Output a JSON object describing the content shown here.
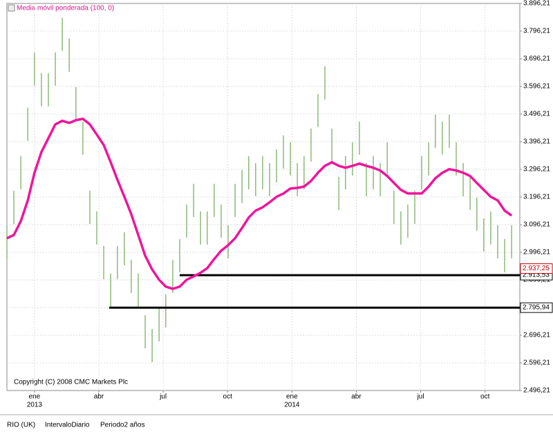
{
  "chart_data": {
    "type": "ohlc",
    "legend_label": "Media móvil ponderada (100, 0)",
    "copyright": "Copyright (C) 2008 CMC Markets Plc",
    "footer": [
      "RIO (UK)",
      "IntervaloDiario",
      "Periodo2 años"
    ],
    "bar_color": "#8cb87a",
    "grid": true,
    "xlim": [
      2012.893,
      2014.885
    ],
    "xticks": [
      {
        "value": 2013.0,
        "label": "ene"
      },
      {
        "value": 2013.25,
        "label": "abr"
      },
      {
        "value": 2013.5,
        "label": "jul"
      },
      {
        "value": 2013.75,
        "label": "oct"
      },
      {
        "value": 2014.0,
        "label": "ene"
      },
      {
        "value": 2014.25,
        "label": "abr"
      },
      {
        "value": 2014.5,
        "label": "jul"
      },
      {
        "value": 2014.75,
        "label": "oct"
      }
    ],
    "year_labels": [
      {
        "value": 2013.0,
        "label": "2013"
      },
      {
        "value": 2014.0,
        "label": "2014"
      }
    ],
    "ylim": [
      2496.21,
      3896.21
    ],
    "yticks": [
      {
        "value": 2496.21,
        "label": "2.496,21"
      },
      {
        "value": 2596.21,
        "label": "2.596,21"
      },
      {
        "value": 2696.21,
        "label": "2.696,21"
      },
      {
        "value": 2796.21,
        "label": "2.796,21"
      },
      {
        "value": 2896.21,
        "label": "2.896,21"
      },
      {
        "value": 2996.21,
        "label": "2.996,21"
      },
      {
        "value": 3096.21,
        "label": "3.096,21"
      },
      {
        "value": 3196.21,
        "label": "3.196,21"
      },
      {
        "value": 3296.21,
        "label": "3.296,21"
      },
      {
        "value": 3396.21,
        "label": "3.396,21"
      },
      {
        "value": 3496.21,
        "label": "3.496,21"
      },
      {
        "value": 3596.21,
        "label": "3.596,21"
      },
      {
        "value": 3696.21,
        "label": "3.696,21"
      },
      {
        "value": 3796.21,
        "label": "3.796,21"
      },
      {
        "value": 3896.21,
        "label": "3.896,21"
      }
    ],
    "x": [
      2012.893,
      2012.92,
      2012.947,
      2012.974,
      2013.0,
      2013.027,
      2013.054,
      2013.081,
      2013.108,
      2013.135,
      2013.161,
      2013.188,
      2013.215,
      2013.242,
      2013.269,
      2013.296,
      2013.322,
      2013.349,
      2013.376,
      2013.403,
      2013.43,
      2013.457,
      2013.484,
      2013.51,
      2013.537,
      2013.564,
      2013.591,
      2013.618,
      2013.645,
      2013.671,
      2013.698,
      2013.725,
      2013.752,
      2013.779,
      2013.806,
      2013.832,
      2013.859,
      2013.886,
      2013.913,
      2013.94,
      2013.967,
      2013.994,
      2014.021,
      2014.047,
      2014.074,
      2014.101,
      2014.128,
      2014.155,
      2014.182,
      2014.208,
      2014.235,
      2014.262,
      2014.289,
      2014.316,
      2014.343,
      2014.37,
      2014.396,
      2014.423,
      2014.45,
      2014.477,
      2014.504,
      2014.531,
      2014.557,
      2014.584,
      2014.611,
      2014.638,
      2014.665,
      2014.692,
      2014.718,
      2014.745,
      2014.772,
      2014.799,
      2014.826,
      2014.853
    ],
    "high": [
      3094,
      3219,
      3344,
      3519,
      3719,
      3644,
      3644,
      3719,
      3844,
      3769,
      3594,
      3469,
      3219,
      3144,
      3019,
      2919,
      3019,
      3069,
      2969,
      2919,
      2769,
      2719,
      2794,
      2844,
      2969,
      3044,
      3169,
      3244,
      3144,
      3144,
      3244,
      3169,
      3094,
      3244,
      3294,
      3344,
      3319,
      3344,
      3319,
      3369,
      3419,
      3394,
      3319,
      3344,
      3444,
      3569,
      3669,
      3444,
      3269,
      3344,
      3394,
      3469,
      3319,
      3344,
      3319,
      3394,
      3219,
      3144,
      3169,
      3219,
      3344,
      3394,
      3494,
      3469,
      3494,
      3394,
      3319,
      3269,
      3194,
      3119,
      3144,
      3094,
      3044,
      3094
    ],
    "low": [
      2974,
      3099,
      3224,
      3399,
      3599,
      3524,
      3524,
      3599,
      3724,
      3649,
      3474,
      3349,
      3099,
      3024,
      2899,
      2799,
      2899,
      2949,
      2849,
      2799,
      2649,
      2599,
      2674,
      2724,
      2849,
      2924,
      3049,
      3124,
      3024,
      3024,
      3124,
      3049,
      2974,
      3124,
      3174,
      3224,
      3199,
      3224,
      3199,
      3249,
      3299,
      3274,
      3199,
      3224,
      3324,
      3449,
      3549,
      3324,
      3149,
      3224,
      3274,
      3349,
      3199,
      3224,
      3199,
      3274,
      3099,
      3024,
      3049,
      3099,
      3224,
      3274,
      3374,
      3349,
      3374,
      3274,
      3199,
      3149,
      3074,
      2999,
      3024,
      2974,
      2924,
      2974
    ],
    "series": [
      {
        "name": "Media móvil ponderada (100, 0)",
        "color": "#f0149b",
        "values": [
          3047,
          3059,
          3109,
          3184,
          3284,
          3359,
          3409,
          3459,
          3472,
          3464,
          3474,
          3479,
          3459,
          3422,
          3384,
          3322,
          3259,
          3197,
          3134,
          3059,
          2984,
          2934,
          2897,
          2872,
          2864,
          2872,
          2897,
          2909,
          2922,
          2939,
          2972,
          3002,
          3022,
          3047,
          3084,
          3122,
          3147,
          3159,
          3177,
          3197,
          3209,
          3227,
          3229,
          3234,
          3254,
          3284,
          3309,
          3322,
          3309,
          3302,
          3309,
          3317,
          3309,
          3302,
          3292,
          3272,
          3247,
          3222,
          3209,
          3209,
          3209,
          3234,
          3264,
          3284,
          3297,
          3292,
          3284,
          3272,
          3247,
          3222,
          3197,
          3184,
          3147,
          3129
        ]
      }
    ],
    "hlines": [
      {
        "value": 2913.53,
        "label": "2.913,53",
        "x_start": 2013.564
      },
      {
        "value": 2795.94,
        "label": "2.795,94",
        "x_start": 2013.29
      }
    ],
    "last_price": {
      "value": 2937.25,
      "label": "2.937,25",
      "color": "#c00000"
    }
  }
}
